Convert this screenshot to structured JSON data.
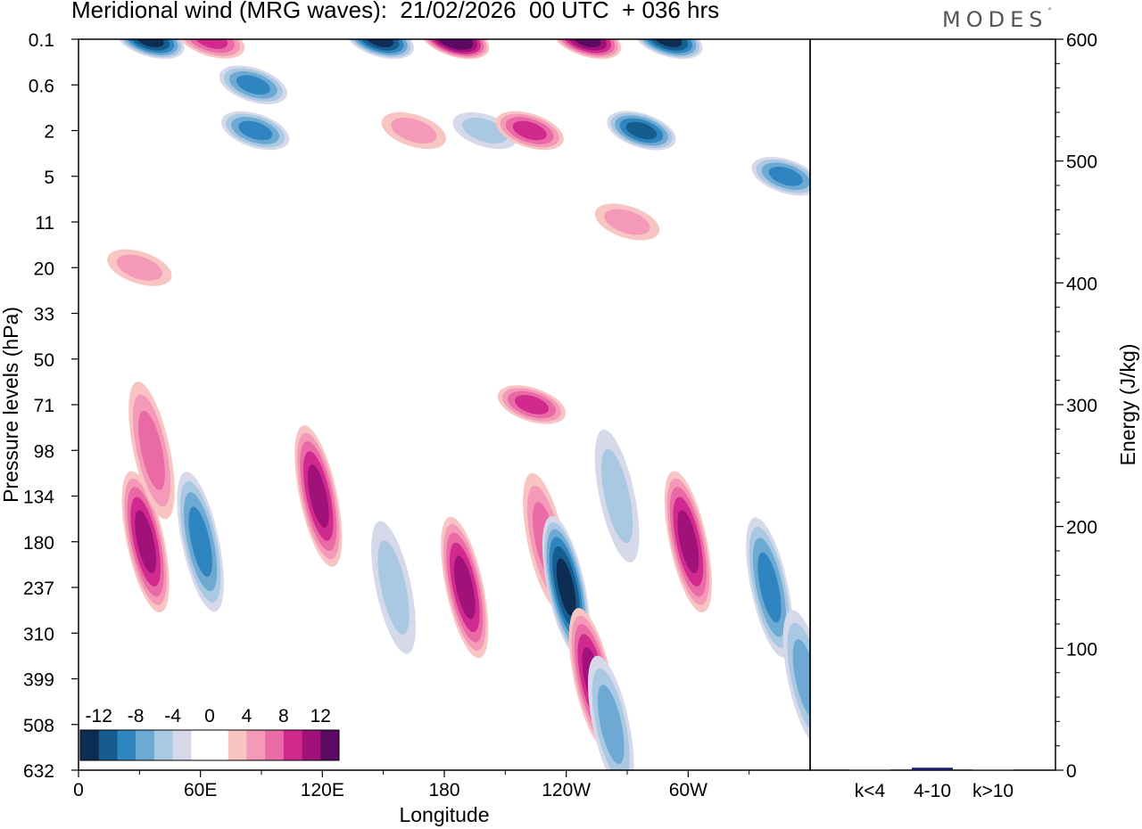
{
  "header": {
    "title": "Meridional wind (MRG waves):  21/02/2026  00 UTC  + 036 hrs",
    "brand": "MODES",
    "brand_mark": "°"
  },
  "chart_data": [
    {
      "type": "heatmap",
      "title": "Meridional wind (MRG waves):  21/02/2026  00 UTC  + 036 hrs",
      "xlabel": "Longitude",
      "ylabel": "Pressure levels (hPa)",
      "x_ticks": [
        "0",
        "60E",
        "120E",
        "180",
        "120W",
        "60W"
      ],
      "y_ticks": [
        "0.1",
        "0.6",
        "2",
        "5",
        "11",
        "20",
        "33",
        "50",
        "71",
        "98",
        "134",
        "180",
        "237",
        "310",
        "399",
        "508",
        "632"
      ],
      "colorbar": {
        "ticks": [
          "-12",
          "-8",
          "-4",
          "0",
          "4",
          "8",
          "12"
        ],
        "colors": [
          "#0d2d55",
          "#155d8e",
          "#2e85bf",
          "#6ea9d4",
          "#a9c8e2",
          "#d5d9ea",
          "#ffffff",
          "#ffffff",
          "#f9c5c3",
          "#f49ab8",
          "#ea6aa6",
          "#d12a8e",
          "#a0127a",
          "#5c0a62"
        ]
      },
      "features": [
        {
          "sign": "negative",
          "lon": 35,
          "level": "0.1",
          "peak": -12
        },
        {
          "sign": "positive",
          "lon": 65,
          "level": "0.1",
          "peak": 8
        },
        {
          "sign": "negative",
          "lon": 86,
          "level": "0.6",
          "peak": -8
        },
        {
          "sign": "negative",
          "lon": 87,
          "level": "2",
          "peak": -8
        },
        {
          "sign": "negative",
          "lon": 148,
          "level": "0.1",
          "peak": -12
        },
        {
          "sign": "positive",
          "lon": 185,
          "level": "0.1",
          "peak": 14
        },
        {
          "sign": "positive",
          "lon": 165,
          "level": "2",
          "peak": 4
        },
        {
          "sign": "negative",
          "lon": 200,
          "level": "2",
          "peak": -4
        },
        {
          "sign": "positive",
          "lon": 250,
          "level": "0.1",
          "peak": 12
        },
        {
          "sign": "positive",
          "lon": 222,
          "level": "2",
          "peak": 8
        },
        {
          "sign": "negative",
          "lon": 290,
          "level": "0.1",
          "peak": -12
        },
        {
          "sign": "negative",
          "lon": 277,
          "level": "2",
          "peak": -10
        },
        {
          "sign": "negative",
          "lon": 348,
          "level": "5",
          "peak": -8
        },
        {
          "sign": "positive",
          "lon": 270,
          "level": "11",
          "peak": 4
        },
        {
          "sign": "positive",
          "lon": 30,
          "level": "20",
          "peak": 4
        },
        {
          "sign": "positive",
          "lon": 33,
          "level": "180",
          "peak": 10
        },
        {
          "sign": "positive",
          "lon": 36,
          "level": "98",
          "peak": 6
        },
        {
          "sign": "negative",
          "lon": 60,
          "level": "180",
          "peak": -8
        },
        {
          "sign": "positive",
          "lon": 118,
          "level": "134",
          "peak": 10
        },
        {
          "sign": "negative",
          "lon": 155,
          "level": "237",
          "peak": -4
        },
        {
          "sign": "positive",
          "lon": 190,
          "level": "237",
          "peak": 10
        },
        {
          "sign": "positive",
          "lon": 223,
          "level": "71",
          "peak": 8
        },
        {
          "sign": "positive",
          "lon": 230,
          "level": "180",
          "peak": 6
        },
        {
          "sign": "negative",
          "lon": 240,
          "level": "237",
          "peak": -12
        },
        {
          "sign": "positive",
          "lon": 253,
          "level": "399",
          "peak": 10
        },
        {
          "sign": "negative",
          "lon": 265,
          "level": "134",
          "peak": -4
        },
        {
          "sign": "negative",
          "lon": 262,
          "level": "508",
          "peak": -6
        },
        {
          "sign": "positive",
          "lon": 300,
          "level": "180",
          "peak": 10
        },
        {
          "sign": "negative",
          "lon": 340,
          "level": "237",
          "peak": -8
        },
        {
          "sign": "negative",
          "lon": 358,
          "level": "399",
          "peak": -6
        }
      ]
    },
    {
      "type": "bar",
      "categories": [
        "k<4",
        "4-10",
        "k>10"
      ],
      "values": [
        0,
        2,
        0
      ],
      "ylabel": "Energy (J/kg)",
      "ylim": [
        0,
        600
      ],
      "y_ticks": [
        "0",
        "100",
        "200",
        "300",
        "400",
        "500",
        "600"
      ],
      "bar_color": "#1c1c6b"
    }
  ]
}
